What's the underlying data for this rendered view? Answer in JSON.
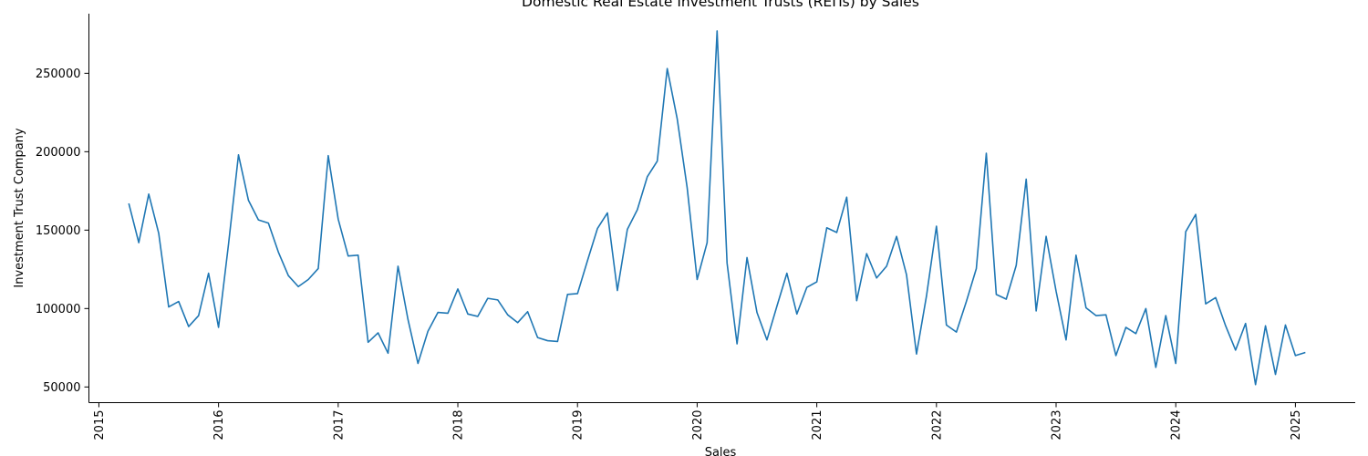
{
  "chart_data": {
    "type": "line",
    "title": "Domestic Real Estate Investment Trusts (REITs) by Sales",
    "xlabel": "Sales",
    "ylabel": "Investment Trust Company",
    "x_ticks": [
      "2015",
      "2016",
      "2017",
      "2018",
      "2019",
      "2020",
      "2021",
      "2022",
      "2023",
      "2024",
      "2025"
    ],
    "y_ticks": [
      50000,
      100000,
      150000,
      200000,
      250000
    ],
    "xlim": [
      "2014-12",
      "2025-07"
    ],
    "ylim": [
      40000,
      288000
    ],
    "grid": false,
    "color": "#1f77b4",
    "series": [
      {
        "x": [
          "2015-04",
          "2015-05",
          "2015-06",
          "2015-07",
          "2015-08",
          "2015-09",
          "2015-10",
          "2015-11",
          "2015-12",
          "2016-01",
          "2016-02",
          "2016-03",
          "2016-04",
          "2016-05",
          "2016-06",
          "2016-07",
          "2016-08",
          "2016-09",
          "2016-10",
          "2016-11",
          "2016-12",
          "2017-01",
          "2017-02",
          "2017-03",
          "2017-04",
          "2017-05",
          "2017-06",
          "2017-07",
          "2017-08",
          "2017-09",
          "2017-10",
          "2017-11",
          "2017-12",
          "2018-01",
          "2018-02",
          "2018-03",
          "2018-04",
          "2018-05",
          "2018-06",
          "2018-07",
          "2018-08",
          "2018-09",
          "2018-10",
          "2018-11",
          "2018-12",
          "2019-01",
          "2019-02",
          "2019-03",
          "2019-04",
          "2019-05",
          "2019-06",
          "2019-07",
          "2019-08",
          "2019-09",
          "2019-10",
          "2019-11",
          "2019-12",
          "2020-01",
          "2020-02",
          "2020-03",
          "2020-04",
          "2020-05",
          "2020-06",
          "2020-07",
          "2020-08",
          "2020-09",
          "2020-10",
          "2020-11",
          "2020-12",
          "2021-01",
          "2021-02",
          "2021-03",
          "2021-04",
          "2021-05",
          "2021-06",
          "2021-07",
          "2021-08",
          "2021-09",
          "2021-10",
          "2021-11",
          "2021-12",
          "2022-01",
          "2022-02",
          "2022-03",
          "2022-04",
          "2022-05",
          "2022-06",
          "2022-07",
          "2022-08",
          "2022-09",
          "2022-10",
          "2022-11",
          "2022-12",
          "2023-01",
          "2023-02",
          "2023-03",
          "2023-04",
          "2023-05",
          "2023-06",
          "2023-07",
          "2023-08",
          "2023-09",
          "2023-10",
          "2023-11",
          "2023-12",
          "2024-01",
          "2024-02",
          "2024-03",
          "2024-04",
          "2024-05",
          "2024-06",
          "2024-07",
          "2024-08",
          "2024-09",
          "2024-10",
          "2024-11",
          "2024-12",
          "2025-01",
          "2025-02"
        ],
        "values": [
          167000,
          142000,
          173000,
          148000,
          101000,
          104500,
          88500,
          95500,
          122500,
          88000,
          141000,
          198000,
          169000,
          156500,
          154500,
          136000,
          121000,
          114000,
          118500,
          125500,
          197500,
          157000,
          133500,
          134000,
          78500,
          84500,
          71500,
          127000,
          93000,
          65000,
          85500,
          97500,
          97000,
          112500,
          96500,
          95000,
          106500,
          105500,
          96000,
          91000,
          98000,
          81500,
          79500,
          79000,
          109000,
          109500,
          130500,
          151000,
          161000,
          111500,
          150500,
          163000,
          184000,
          194000,
          253000,
          221000,
          177000,
          118500,
          142000,
          277000,
          129000,
          77500,
          132500,
          97500,
          80000,
          101500,
          122500,
          96500,
          113500,
          117000,
          151500,
          148500,
          171000,
          105000,
          135000,
          119500,
          127000,
          146000,
          121500,
          71000,
          108000,
          152500,
          89500,
          85000,
          104500,
          125500,
          199000,
          109000,
          106000,
          127500,
          182500,
          98500,
          146000,
          111000,
          80000,
          134000,
          100500,
          95500,
          96000,
          70000,
          88000,
          84000,
          100000,
          62500,
          95500,
          65000,
          149000,
          160000,
          103000,
          107000,
          89000,
          73500,
          90500,
          51500,
          89000,
          58000,
          89500,
          70000,
          72000
        ]
      }
    ]
  }
}
